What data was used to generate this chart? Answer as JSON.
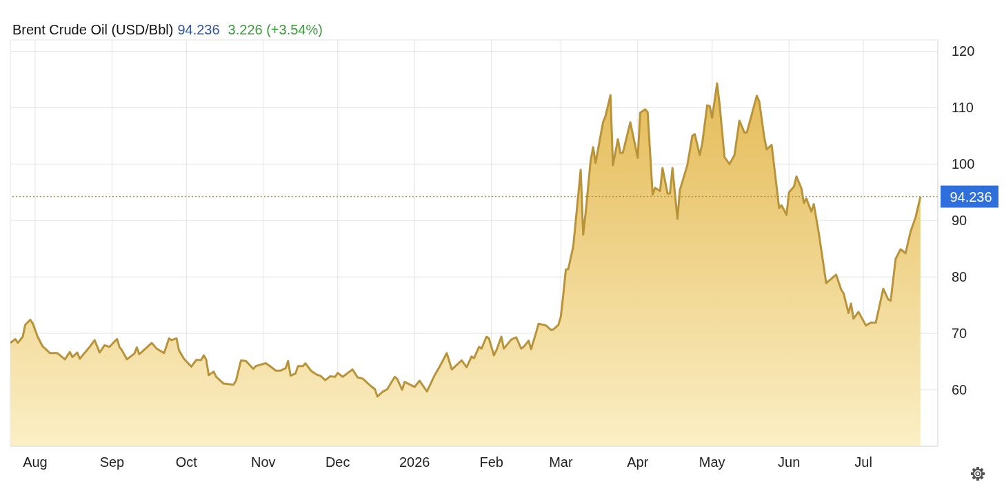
{
  "chart_data": {
    "type": "area",
    "title": "Brent Crude Oil (USD/Bbl)",
    "annotations": [
      "94.236",
      "3.226 (+3.54%)"
    ],
    "x": [
      "2025-07-22",
      "2025-07-24",
      "2025-07-25",
      "2025-07-27",
      "2025-07-28",
      "2025-07-30",
      "2025-07-31",
      "2025-08-02",
      "2025-08-04",
      "2025-08-07",
      "2025-08-10",
      "2025-08-13",
      "2025-08-15",
      "2025-08-16",
      "2025-08-18",
      "2025-08-19",
      "2025-08-23",
      "2025-08-25",
      "2025-08-27",
      "2025-08-29",
      "2025-08-31",
      "2025-09-03",
      "2025-09-04",
      "2025-09-05",
      "2025-09-07",
      "2025-09-10",
      "2025-09-11",
      "2025-09-12",
      "2025-09-14",
      "2025-09-17",
      "2025-09-19",
      "2025-09-22",
      "2025-09-24",
      "2025-09-25",
      "2025-09-27",
      "2025-09-28",
      "2025-09-30",
      "2025-10-03",
      "2025-10-05",
      "2025-10-07",
      "2025-10-08",
      "2025-10-09",
      "2025-10-10",
      "2025-10-12",
      "2025-10-13",
      "2025-10-16",
      "2025-10-20",
      "2025-10-21",
      "2025-10-23",
      "2025-10-25",
      "2025-10-28",
      "2025-10-29",
      "2025-11-02",
      "2025-11-04",
      "2025-11-06",
      "2025-11-08",
      "2025-11-10",
      "2025-11-11",
      "2025-11-12",
      "2025-11-14",
      "2025-11-15",
      "2025-11-17",
      "2025-11-18",
      "2025-11-20",
      "2025-11-21",
      "2025-11-23",
      "2025-11-24",
      "2025-11-26",
      "2025-11-28",
      "2025-11-30",
      "2025-12-01",
      "2025-12-03",
      "2025-12-07",
      "2025-12-09",
      "2025-12-11",
      "2025-12-13",
      "2025-12-14",
      "2025-12-16",
      "2025-12-17",
      "2025-12-19",
      "2025-12-21",
      "2025-12-24",
      "2025-12-25",
      "2025-12-27",
      "2025-12-28",
      "2026-01-01",
      "2026-01-03",
      "2026-01-06",
      "2026-01-09",
      "2026-01-11",
      "2026-01-14",
      "2026-01-16",
      "2026-01-20",
      "2026-01-22",
      "2026-01-24",
      "2026-01-25",
      "2026-01-27",
      "2026-01-28",
      "2026-01-30",
      "2026-01-31",
      "2026-02-02",
      "2026-02-03",
      "2026-02-05",
      "2026-02-06",
      "2026-02-09",
      "2026-02-11",
      "2026-02-13",
      "2026-02-14",
      "2026-02-16",
      "2026-02-17",
      "2026-02-19",
      "2026-02-20",
      "2026-02-23",
      "2026-02-25",
      "2026-02-26",
      "2026-02-28",
      "2026-03-01",
      "2026-03-02",
      "2026-03-03",
      "2026-03-04",
      "2026-03-06",
      "2026-03-09",
      "2026-03-10",
      "2026-03-11",
      "2026-03-13",
      "2026-03-14",
      "2026-03-15",
      "2026-03-18",
      "2026-03-19",
      "2026-03-21",
      "2026-03-22",
      "2026-03-24",
      "2026-03-25",
      "2026-03-26",
      "2026-03-29",
      "2026-04-01",
      "2026-04-02",
      "2026-04-04",
      "2026-04-05",
      "2026-04-07",
      "2026-04-08",
      "2026-04-10",
      "2026-04-11",
      "2026-04-13",
      "2026-04-14",
      "2026-04-15",
      "2026-04-17",
      "2026-04-18",
      "2026-04-21",
      "2026-04-23",
      "2026-04-24",
      "2026-04-26",
      "2026-04-27",
      "2026-04-29",
      "2026-04-30",
      "2026-05-01",
      "2026-05-03",
      "2026-05-04",
      "2026-05-06",
      "2026-05-08",
      "2026-05-10",
      "2026-05-12",
      "2026-05-14",
      "2026-05-15",
      "2026-05-19",
      "2026-05-20",
      "2026-05-22",
      "2026-05-23",
      "2026-05-25",
      "2026-05-28",
      "2026-05-29",
      "2026-05-31",
      "2026-06-01",
      "2026-06-03",
      "2026-06-04",
      "2026-06-06",
      "2026-06-07",
      "2026-06-08",
      "2026-06-10",
      "2026-06-11",
      "2026-06-13",
      "2026-06-16",
      "2026-06-20",
      "2026-06-22",
      "2026-06-23",
      "2026-06-25",
      "2026-06-26",
      "2026-06-27",
      "2026-06-29",
      "2026-07-02",
      "2026-07-04",
      "2026-07-06",
      "2026-07-09",
      "2026-07-11",
      "2026-07-12",
      "2026-07-14",
      "2026-07-16",
      "2026-07-18",
      "2026-07-20",
      "2026-07-22",
      "2026-07-24"
    ],
    "series": [
      {
        "color": "#b8933a",
        "values": [
          68.3,
          69.0,
          68.3,
          69.4,
          71.5,
          72.4,
          71.8,
          69.4,
          67.7,
          66.5,
          66.5,
          65.4,
          66.7,
          65.8,
          66.6,
          65.5,
          67.6,
          68.8,
          66.6,
          67.9,
          67.6,
          69.0,
          67.6,
          67.0,
          65.4,
          66.4,
          67.5,
          66.3,
          67.1,
          68.3,
          67.3,
          66.5,
          69.1,
          68.8,
          69.1,
          67.0,
          65.5,
          64.1,
          65.3,
          65.3,
          66.1,
          65.3,
          62.6,
          63.2,
          62.3,
          61.1,
          60.9,
          61.6,
          65.2,
          65.1,
          63.7,
          64.2,
          64.7,
          64.1,
          63.4,
          63.4,
          63.8,
          65.1,
          62.5,
          62.9,
          64.2,
          64.2,
          64.7,
          63.5,
          63.1,
          62.6,
          62.5,
          61.7,
          62.4,
          62.3,
          63.0,
          62.3,
          63.6,
          62.2,
          62.0,
          61.2,
          60.8,
          60.1,
          58.8,
          59.6,
          60.1,
          62.3,
          61.9,
          60.0,
          61.4,
          60.5,
          61.6,
          59.7,
          62.5,
          64.0,
          66.5,
          63.6,
          65.2,
          64.0,
          65.9,
          65.6,
          67.6,
          67.3,
          69.4,
          69.1,
          66.1,
          67.0,
          69.4,
          67.3,
          68.9,
          69.3,
          67.3,
          67.6,
          68.7,
          67.2,
          70.1,
          71.7,
          71.4,
          70.6,
          70.7,
          71.5,
          73.0,
          77.0,
          81.3,
          81.4,
          85.4,
          99.0,
          87.5,
          91.4,
          100.6,
          103.0,
          100.2,
          107.4,
          108.5,
          112.2,
          99.8,
          104.4,
          102.0,
          102.0,
          107.4,
          101.1,
          109.1,
          109.7,
          109.2,
          94.6,
          95.8,
          95.2,
          99.3,
          94.8,
          94.8,
          99.3,
          90.3,
          95.4,
          99.8,
          105.0,
          105.3,
          101.6,
          103.6,
          110.4,
          110.3,
          108.2,
          114.3,
          110.6,
          101.2,
          100.0,
          101.6,
          107.7,
          105.6,
          105.6,
          112.1,
          111.1,
          104.8,
          102.6,
          103.4,
          92.2,
          92.7,
          91.0,
          95.0,
          96.0,
          97.8,
          95.7,
          93.1,
          93.9,
          91.6,
          92.9,
          87.8,
          78.9,
          80.4,
          77.8,
          77.1,
          73.6,
          75.3,
          72.6,
          73.8,
          71.4,
          71.9,
          71.9,
          77.9,
          76.0,
          75.8,
          83.2,
          84.9,
          84.2,
          88.0,
          90.5,
          94.2
        ]
      }
    ],
    "xlim": [
      "2025-07-22",
      "2026-07-31"
    ],
    "xticks": [
      {
        "value": "2025-08-01",
        "label": "Aug"
      },
      {
        "value": "2025-09-01",
        "label": "Sep"
      },
      {
        "value": "2025-10-01",
        "label": "Oct"
      },
      {
        "value": "2025-11-01",
        "label": "Nov"
      },
      {
        "value": "2025-12-01",
        "label": "Dec"
      },
      {
        "value": "2026-01-01",
        "label": "2026"
      },
      {
        "value": "2026-02-01",
        "label": "Feb"
      },
      {
        "value": "2026-03-01",
        "label": "Mar"
      },
      {
        "value": "2026-04-01",
        "label": "Apr"
      },
      {
        "value": "2026-05-01",
        "label": "May"
      },
      {
        "value": "2026-06-01",
        "label": "Jun"
      },
      {
        "value": "2026-07-01",
        "label": "Jul"
      }
    ],
    "ylim": [
      50,
      122
    ],
    "yticks": [
      60,
      70,
      80,
      90,
      100,
      110,
      120
    ],
    "ref_lines": [
      {
        "axis": "y",
        "value": 94.236,
        "label": "94.236",
        "color": "#b8933a",
        "line_style": "dotted"
      }
    ],
    "grid": true
  }
}
